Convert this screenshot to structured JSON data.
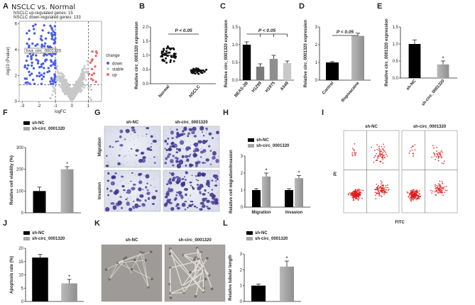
{
  "panel_labels": [
    "A",
    "B",
    "C",
    "D",
    "E",
    "F",
    "G",
    "H",
    "I",
    "J",
    "K",
    "L"
  ],
  "colors": {
    "black_bar": "#000000",
    "gray_bar": "#a6a6a6",
    "volcano_down": "#4a5ee8",
    "volcano_up": "#f06a6a",
    "volcano_stable": "#c8c8c8",
    "flow_dot": "#e01b1b"
  },
  "chart_data": [
    {
      "panel": "A",
      "type": "scatter",
      "title": "NSCLC vs. Normal",
      "subtitle_lines": [
        "NSCLC  up-regulated genes: 15",
        "NSCLC  down-regulated genes: 133"
      ],
      "xlabel": "logFC",
      "ylabel": "-log10 (Pvalue)",
      "xlim": [
        -3.2,
        1.8
      ],
      "ylim": [
        0,
        6.2
      ],
      "xticks": [
        "-3",
        "-2",
        "-1",
        "0",
        "1"
      ],
      "yticks": [
        "0",
        "2",
        "4",
        "6"
      ],
      "annotation": "hsa_circ_0001320",
      "legend_title": "change",
      "legend": [
        "down",
        "stable",
        "up"
      ]
    },
    {
      "panel": "B",
      "type": "scatter",
      "categories": [
        "Normal",
        "NSCLC"
      ],
      "means": [
        1.0,
        0.45
      ],
      "ylabel": "Relative circ_0001320 expression",
      "ylim": [
        0,
        2.0
      ],
      "yticks": [
        "0.0",
        "0.5",
        "1.0",
        "1.5",
        "2.0"
      ],
      "annotation": "P < 0.05"
    },
    {
      "panel": "C",
      "type": "bar",
      "categories": [
        "BEAS-2B",
        "H1299",
        "H1975",
        "A549"
      ],
      "values": [
        1.0,
        0.38,
        0.6,
        0.48
      ],
      "errors": [
        0.08,
        0.08,
        0.1,
        0.06
      ],
      "ylabel": "Relative circ_0001320 expression",
      "ylim": [
        0,
        1.5
      ],
      "yticks": [
        "0.0",
        "0.5",
        "1.0",
        "1.5"
      ],
      "annotation": "P < 0.05"
    },
    {
      "panel": "D",
      "type": "bar",
      "categories": [
        "Control",
        "Ropivacaine"
      ],
      "values": [
        1.0,
        2.5
      ],
      "errors": [
        0.05,
        0.15
      ],
      "ylabel": "Relative circ_0001320 expression",
      "ylim": [
        0,
        3
      ],
      "yticks": [
        "0",
        "1",
        "2",
        "3"
      ],
      "annotation": "P < 0.05"
    },
    {
      "panel": "E",
      "type": "bar",
      "categories": [
        "sh-NC",
        "sh-circ_0001320"
      ],
      "values": [
        1.0,
        0.4
      ],
      "errors": [
        0.12,
        0.1
      ],
      "ylabel": "Relative circ_0001320 expression",
      "ylim": [
        0,
        1.5
      ],
      "yticks": [
        "0.0",
        "0.5",
        "1.0",
        "1.5"
      ],
      "annotation": "*"
    },
    {
      "panel": "F",
      "type": "bar",
      "categories": [
        "sh-NC",
        "sh-circ_0001320"
      ],
      "values": [
        100,
        200
      ],
      "errors": [
        18,
        12
      ],
      "ylabel": "Relative cell viability (%)",
      "ylim": [
        0,
        300
      ],
      "yticks": [
        "0",
        "100",
        "200",
        "300"
      ],
      "legend": [
        "sh-NC",
        "sh-circ_0001320"
      ],
      "annotation": "*"
    },
    {
      "panel": "G",
      "type": "table",
      "col_headers": [
        "sh-NC",
        "sh-circ_0001320"
      ],
      "row_headers": [
        "Migration",
        "Invasion"
      ]
    },
    {
      "panel": "H",
      "type": "bar",
      "categories": [
        "Migration",
        "Invasion"
      ],
      "series": [
        {
          "name": "sh-NC",
          "values": [
            1.0,
            1.0
          ],
          "errors": [
            0.08,
            0.08
          ]
        },
        {
          "name": "sh-circ_0001320",
          "values": [
            1.8,
            1.7
          ],
          "errors": [
            0.2,
            0.15
          ]
        }
      ],
      "ylabel": "Relative cell migration/invasion",
      "ylim": [
        0,
        3
      ],
      "yticks": [
        "0",
        "1",
        "2",
        "3"
      ],
      "annotation": "*"
    },
    {
      "panel": "I",
      "type": "scatter",
      "col_headers": [
        "sh-NC",
        "sh-circ_0001320"
      ],
      "xlabel": "FITC",
      "ylabel": "PI"
    },
    {
      "panel": "J",
      "type": "bar",
      "categories": [
        "sh-NC",
        "sh-circ_0001320"
      ],
      "values": [
        16.5,
        6.8
      ],
      "errors": [
        1.2,
        1.5
      ],
      "ylabel": "Apoptosis rate (%)",
      "ylim": [
        0,
        20
      ],
      "yticks": [
        "0",
        "5",
        "10",
        "15",
        "20"
      ],
      "legend": [
        "sh-NC",
        "sh-circ_0001320"
      ],
      "annotation": "*"
    },
    {
      "panel": "K",
      "type": "table",
      "col_headers": [
        "sh-NC",
        "sh-circ_0001320"
      ]
    },
    {
      "panel": "L",
      "type": "bar",
      "categories": [
        "sh-NC",
        "sh-circ_0001320"
      ],
      "values": [
        1.0,
        2.2
      ],
      "errors": [
        0.1,
        0.35
      ],
      "ylabel": "Relative tubular length",
      "ylim": [
        0,
        3
      ],
      "yticks": [
        "0",
        "1",
        "2",
        "3"
      ],
      "legend": [
        "sh-NC",
        "sh-circ_0001320"
      ],
      "annotation": "*"
    }
  ]
}
